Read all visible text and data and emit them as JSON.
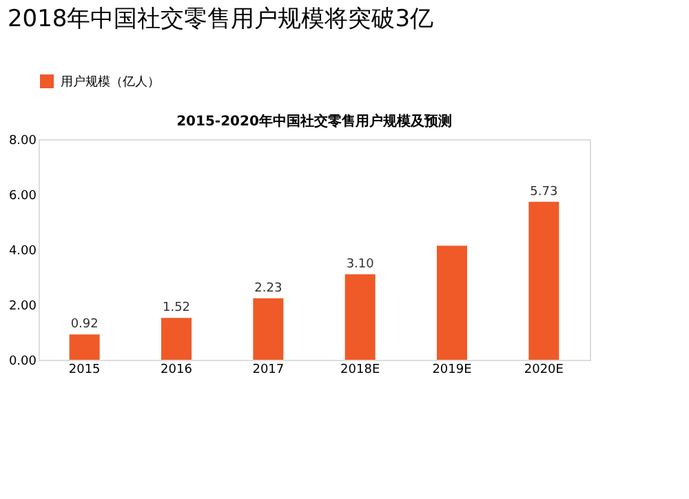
{
  "chart_data": {
    "type": "bar",
    "title": "2018年中国社交零售用户规模将突破3亿",
    "subtitle": "2015-2020年中国社交零售用户规模及预测",
    "categories": [
      "2015",
      "2016",
      "2017",
      "2018E",
      "2019E",
      "2020E"
    ],
    "series": [
      {
        "name": "用户规模（亿人）",
        "color": "#f05a28",
        "values": [
          0.92,
          1.52,
          2.23,
          3.1,
          4.14,
          5.73
        ]
      }
    ],
    "value_labels": [
      "0.92",
      "1.52",
      "2.23",
      "3.10",
      null,
      "5.73"
    ],
    "ylim": [
      0,
      8
    ],
    "yticks": [
      {
        "value": 0,
        "label": "0.00"
      },
      {
        "value": 2,
        "label": "2.00"
      },
      {
        "value": 4,
        "label": "4.00"
      },
      {
        "value": 6,
        "label": "6.00"
      },
      {
        "value": 8,
        "label": "8.00"
      }
    ],
    "grid": false,
    "legend": "top"
  }
}
